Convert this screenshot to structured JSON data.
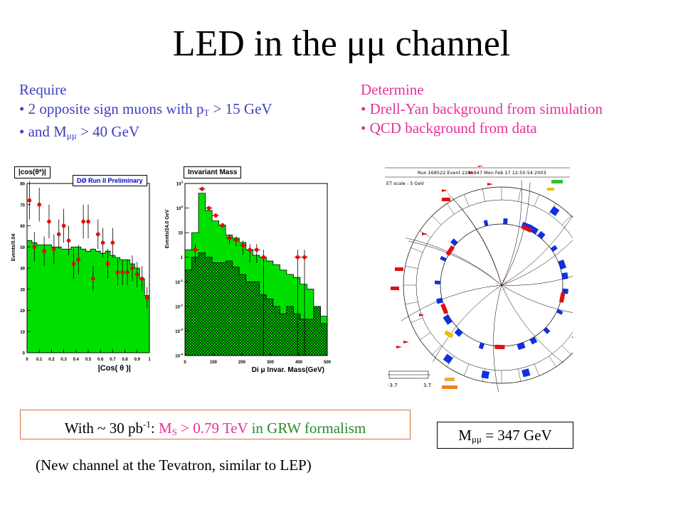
{
  "title": {
    "pre": "LED in the ",
    "greek": "μμ",
    "post": " channel"
  },
  "require": {
    "heading": "Require",
    "b1_pre": "• 2 opposite sign muons with p",
    "b1_sub": "T",
    "b1_post": " > 15 GeV",
    "b2_pre": "• and M",
    "b2_sub": "μμ",
    "b2_post": " > 40 GeV"
  },
  "determine": {
    "heading": "Determine",
    "b1": "• Drell-Yan background from simulation",
    "b2": "• QCD background from data"
  },
  "result": {
    "pre": "With ~ 30 pb",
    "sup": "-1",
    "colon": ": ",
    "ms": "M",
    "ms_sub": "S",
    "limit": " > 0.79 TeV",
    "formalism": " in GRW formalism"
  },
  "mass": {
    "pre": "M",
    "sub": "μμ",
    "post": " = 347 GeV"
  },
  "note": "(New channel at the Tevatron, similar to LEP)",
  "chart_data": [
    {
      "type": "bar",
      "title": "|cos(θ*)|",
      "legend": "DØ Run II Preliminary",
      "xlabel": "|Cos( θ )|",
      "ylabel": "Events/0.04",
      "xlim": [
        0,
        1
      ],
      "ylim": [
        0,
        80
      ],
      "xticks": [
        "0",
        "0.1",
        "0.2",
        "0.3",
        "0.4",
        "0.5",
        "0.6",
        "0.7",
        "0.8",
        "0.9",
        "1"
      ],
      "yticks": [
        "0",
        "10",
        "20",
        "30",
        "40",
        "50",
        "60",
        "70",
        "80"
      ],
      "x": [
        0.02,
        0.06,
        0.1,
        0.14,
        0.18,
        0.22,
        0.26,
        0.3,
        0.34,
        0.38,
        0.42,
        0.46,
        0.5,
        0.54,
        0.58,
        0.62,
        0.66,
        0.7,
        0.74,
        0.78,
        0.82,
        0.86,
        0.9,
        0.94,
        0.98
      ],
      "background": [
        53,
        52,
        51,
        51,
        51,
        50,
        50,
        49,
        49,
        50,
        50,
        49,
        48,
        49,
        48,
        47,
        48,
        46,
        45,
        44,
        44,
        42,
        40,
        35,
        27
      ],
      "data": [
        72,
        50,
        70,
        48,
        62,
        49,
        56,
        60,
        53,
        42,
        44,
        62,
        62,
        35,
        56,
        52,
        42,
        52,
        38,
        38,
        38,
        40,
        37,
        35,
        26
      ],
      "errors": [
        9,
        7,
        8,
        7,
        8,
        7,
        7,
        8,
        7,
        7,
        7,
        8,
        8,
        6,
        7,
        7,
        7,
        7,
        6,
        6,
        6,
        6,
        6,
        6,
        5
      ]
    },
    {
      "type": "bar",
      "title": "Invariant Mass",
      "xlabel": "Di μ Invar. Mass(GeV)",
      "ylabel": "Events/24.0 GeV",
      "scale": "log",
      "xlim": [
        0,
        500
      ],
      "ylim": [
        0.0001,
        1000
      ],
      "xticks": [
        "0",
        "100",
        "200",
        "300",
        "400",
        "500"
      ],
      "yticks": [
        "10^-4",
        "10^-3",
        "10^-2",
        "10^-1",
        "1",
        "10",
        "10^2",
        "10^3"
      ],
      "x": [
        12,
        36,
        60,
        84,
        108,
        132,
        156,
        180,
        204,
        228,
        252,
        276,
        300,
        324,
        348,
        372,
        396,
        420,
        444,
        468,
        492
      ],
      "total_bkg": [
        2,
        10,
        400,
        80,
        30,
        20,
        8,
        6,
        4,
        2,
        1.2,
        1,
        0.7,
        0.5,
        0.3,
        0.2,
        0.15,
        0.08,
        0.05,
        0.01,
        0.004
      ],
      "qcd_bkg": [
        0.3,
        1,
        1.5,
        1,
        0.6,
        0.6,
        0.7,
        0.4,
        0.2,
        0.1,
        0.1,
        0.03,
        0.02,
        0.01,
        0.005,
        0.01,
        0.005,
        0.003,
        0.003,
        0.01,
        0.002
      ],
      "data": [
        0,
        2,
        600,
        100,
        50,
        20,
        6,
        5,
        3,
        2,
        2,
        1,
        0,
        0,
        0,
        0,
        1,
        1,
        0,
        0,
        0
      ]
    }
  ],
  "event_display": {
    "header": "Run 168522 Event 2285947 Mon Feb 17 12:55:54 2003",
    "et_scale": "ET scale : 5 GeV",
    "eta_min": "-3.7",
    "eta_max": "3.7"
  }
}
